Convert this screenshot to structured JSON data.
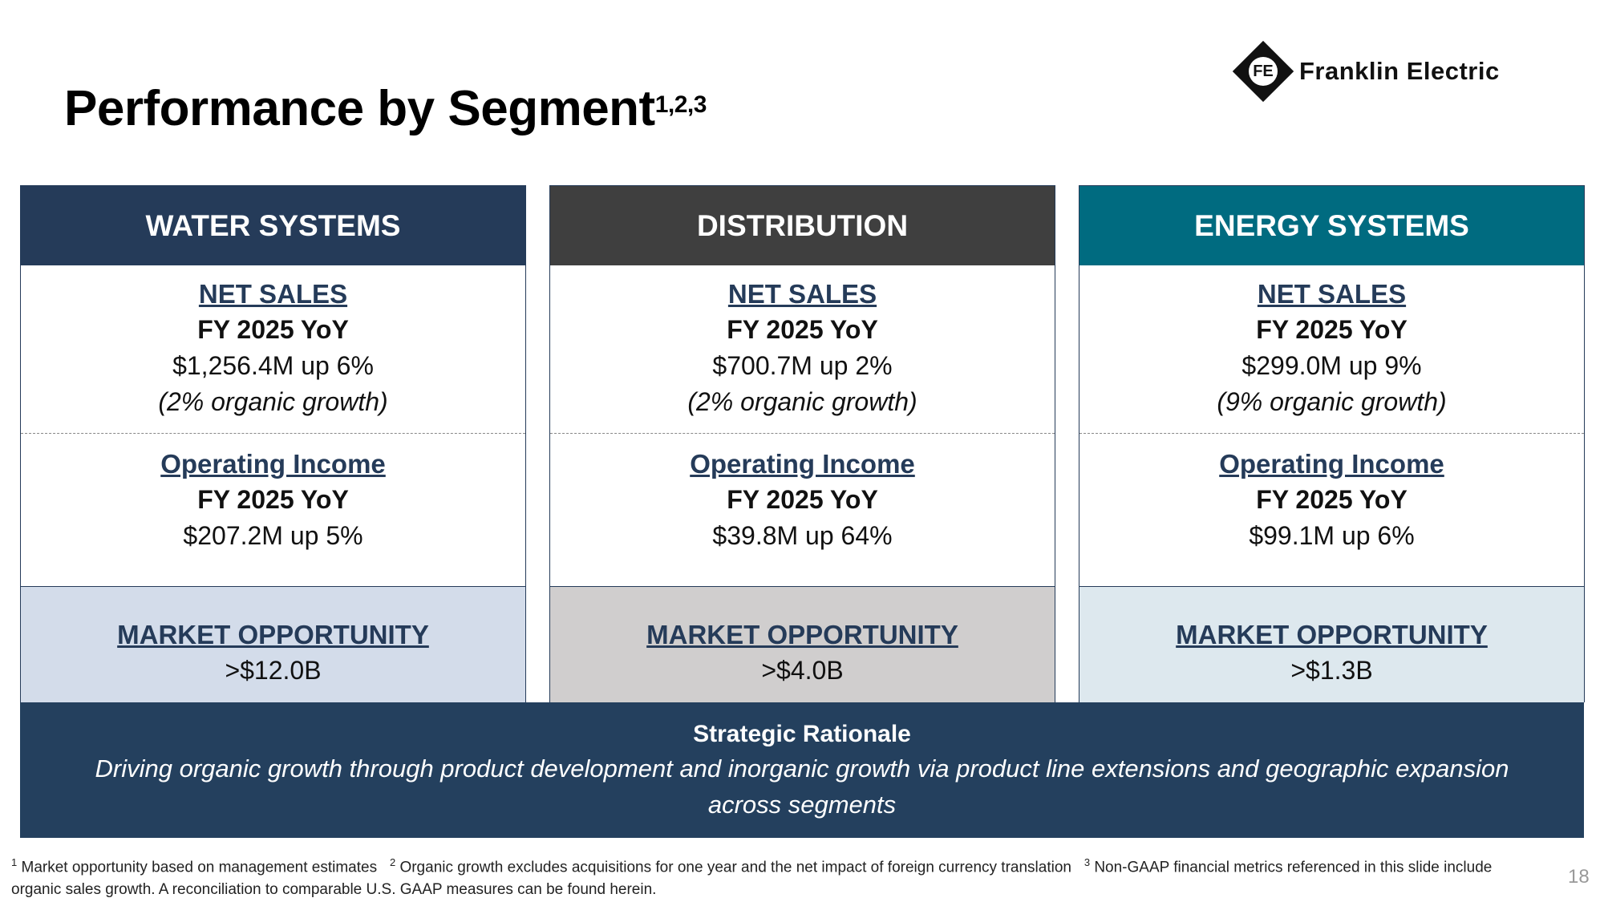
{
  "title": "Performance by Segment",
  "title_sup": "1,2,3",
  "logo": {
    "icon_text": "FE",
    "name": "Franklin Electric"
  },
  "segments": [
    {
      "name": "WATER SYSTEMS",
      "header_color": "#253b59",
      "market_bg": "#d3dcea",
      "net_sales_label": "NET SALES",
      "net_sales_period": "FY 2025 YoY",
      "net_sales_value": "$1,256.4M up 6%",
      "organic": "(2% organic growth)",
      "oi_label": "Operating Income",
      "oi_period": "FY 2025 YoY",
      "oi_value": "$207.2M up 5%",
      "market_label": "MARKET OPPORTUNITY",
      "market_value": ">$12.0B"
    },
    {
      "name": "DISTRIBUTION",
      "header_color": "#3f3f3f",
      "market_bg": "#d0cece",
      "net_sales_label": "NET SALES",
      "net_sales_period": "FY 2025 YoY",
      "net_sales_value": "$700.7M up 2%",
      "organic": "(2% organic growth)",
      "oi_label": "Operating Income",
      "oi_period": "FY 2025 YoY",
      "oi_value": "$39.8M up 64%",
      "market_label": "MARKET OPPORTUNITY",
      "market_value": ">$4.0B"
    },
    {
      "name": "ENERGY SYSTEMS",
      "header_color": "#006b80",
      "market_bg": "#dde8ee",
      "net_sales_label": "NET SALES",
      "net_sales_period": "FY 2025 YoY",
      "net_sales_value": "$299.0M up 9%",
      "organic": "(9% organic growth)",
      "oi_label": "Operating Income",
      "oi_period": "FY 2025 YoY",
      "oi_value": "$99.1M up 6%",
      "market_label": "MARKET OPPORTUNITY",
      "market_value": ">$1.3B"
    }
  ],
  "banner": {
    "title": "Strategic Rationale",
    "body": "Driving organic growth through product development and inorganic growth via product line extensions and geographic expansion across segments"
  },
  "footnotes": {
    "n1": "1",
    "t1": "Market opportunity based on management estimates",
    "n2": "2",
    "t2": "Organic growth excludes acquisitions for one year and the net impact of foreign currency translation",
    "n3": "3",
    "t3": "Non-GAAP financial metrics referenced in this slide include organic sales growth.  A reconciliation to comparable U.S. GAAP measures can be found herein."
  },
  "page_number": "18"
}
